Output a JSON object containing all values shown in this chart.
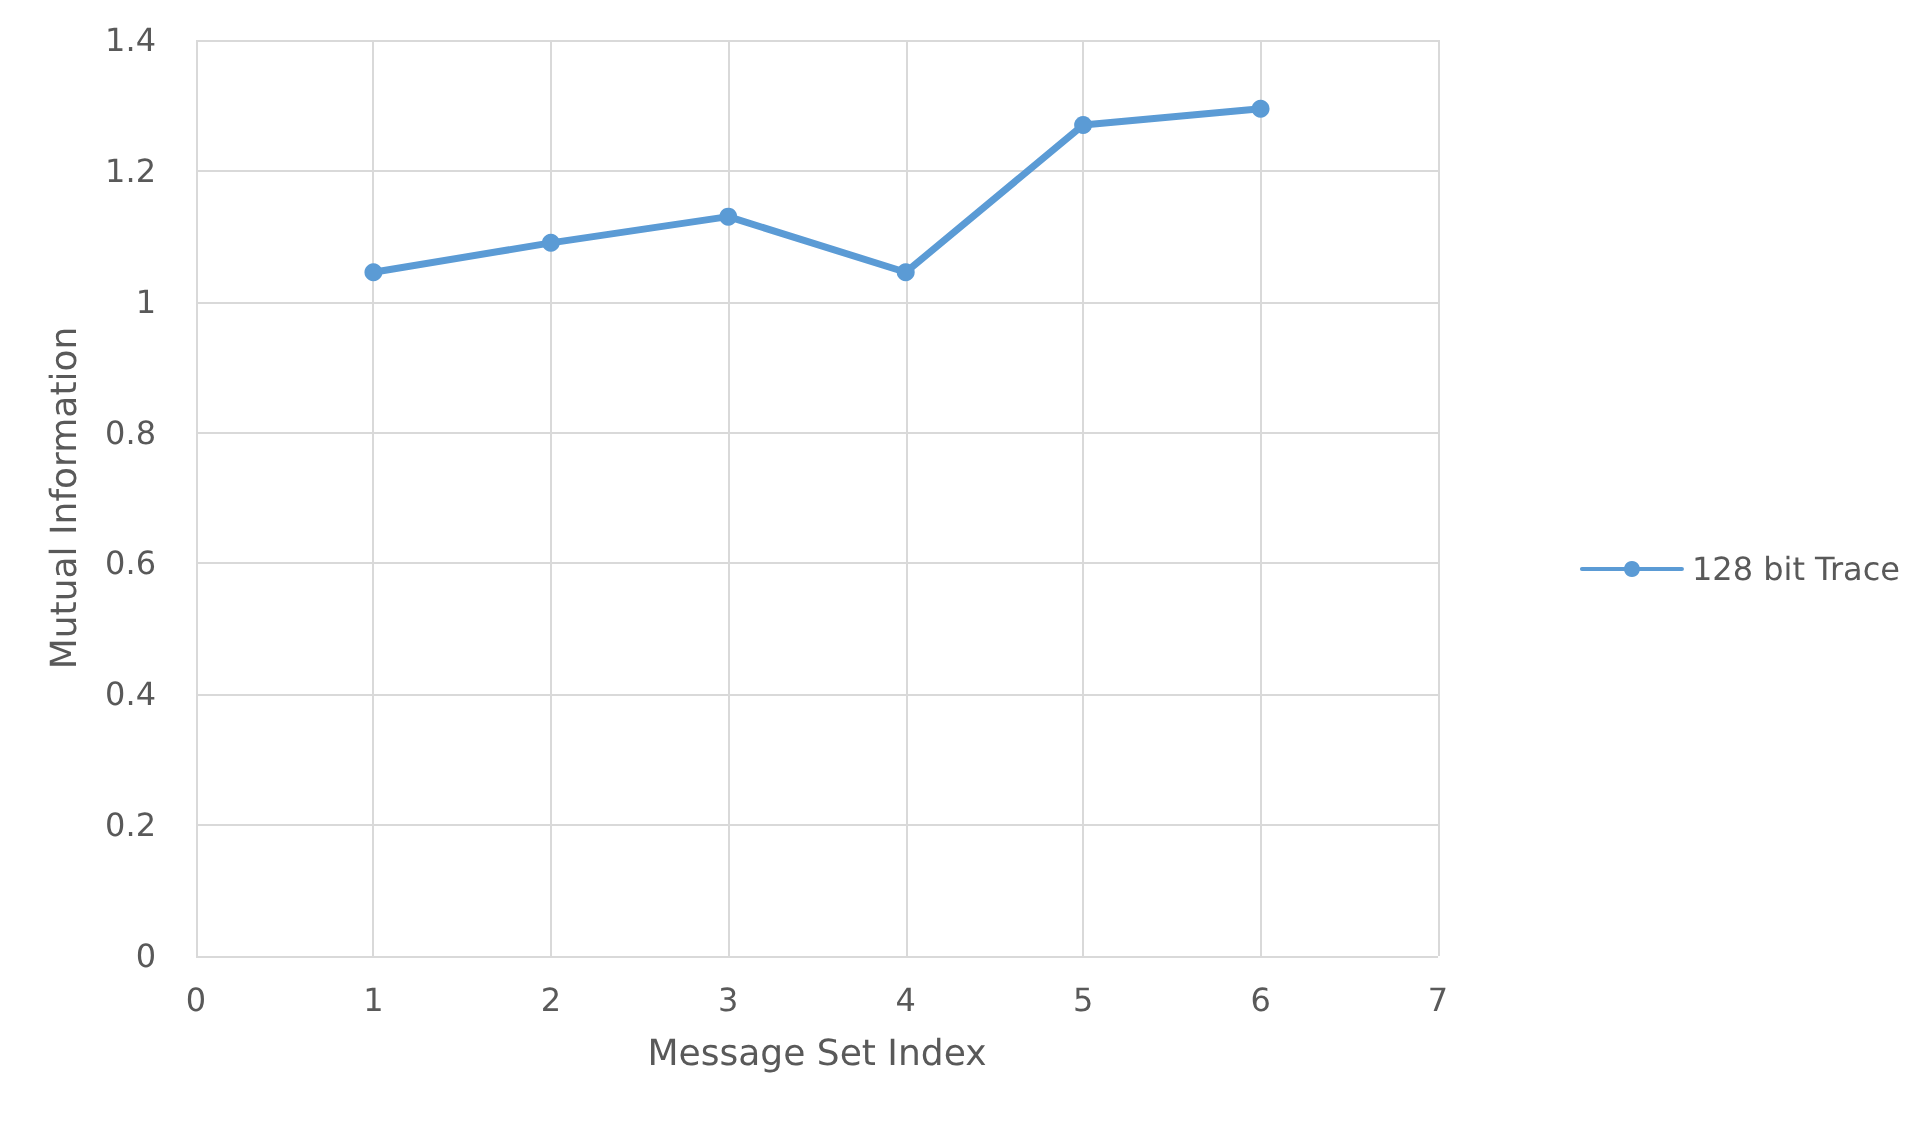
{
  "chart_data": {
    "type": "line",
    "xlabel": "Message Set Index",
    "ylabel": "Mutual Information",
    "x": [
      1,
      2,
      3,
      4,
      5,
      6
    ],
    "series": [
      {
        "name": "128 bit Trace",
        "color": "#5b9bd5",
        "values": [
          1.045,
          1.09,
          1.13,
          1.045,
          1.27,
          1.295
        ]
      }
    ],
    "xlim": [
      0,
      7
    ],
    "xticks": [
      0,
      1,
      2,
      3,
      4,
      5,
      6,
      7
    ],
    "ylim": [
      0,
      1.4
    ],
    "yticks": [
      0,
      0.2,
      0.4,
      0.6,
      0.8,
      1,
      1.2,
      1.4
    ],
    "grid": true,
    "legend": "right",
    "marker": "circle",
    "line_style": "solid"
  }
}
